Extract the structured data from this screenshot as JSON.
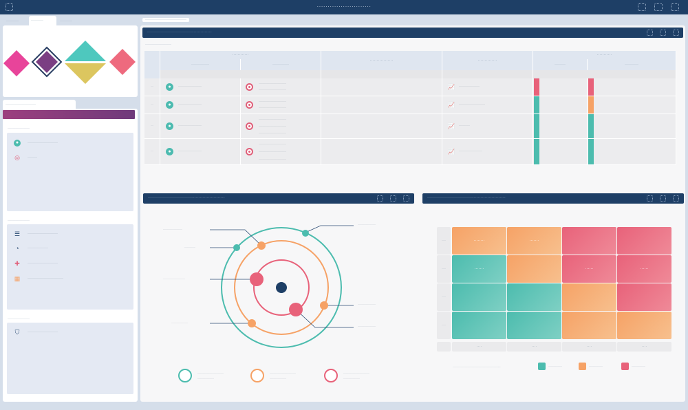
{
  "window": {
    "title": "·························",
    "app_icon": "app-grid-icon",
    "controls": [
      "minimize-icon",
      "maximize-icon",
      "close-icon"
    ]
  },
  "sidebar": {
    "tabs": [
      {
        "label": "·········"
      },
      {
        "label": "·········"
      },
      {
        "label": "·········"
      }
    ],
    "panel_tab": "······················",
    "logo_colors": [
      "#e8449a",
      "#7b3f83",
      "#4ec8be",
      "#dcc65f",
      "#ee6a7e"
    ],
    "sections": [
      {
        "heading": "················",
        "items": [
          {
            "icon": "user-icon",
            "label": "······················"
          },
          {
            "icon": "target-icon",
            "label": "·······"
          }
        ]
      },
      {
        "heading": "················",
        "items": [
          {
            "icon": "list-icon",
            "label": "······················"
          },
          {
            "icon": "pie-chart-icon",
            "label": "···············"
          },
          {
            "icon": "puzzle-icon",
            "label": "······················"
          },
          {
            "icon": "grid-icon",
            "label": "··························"
          }
        ]
      },
      {
        "heading": "················",
        "items": [
          {
            "icon": "shield-icon",
            "label": "······················"
          }
        ]
      }
    ]
  },
  "main": {
    "breadcrumb": "······························",
    "table_panel": {
      "title": "···············································",
      "subtitle": "···················",
      "group_headers": [
        "············",
        "·················",
        "··············",
        "···········"
      ],
      "sub_headers": [
        "·············",
        "············",
        "········",
        "··········"
      ],
      "rows": [
        {
          "num": "··",
          "a": "·················",
          "b1": "····················",
          "b2": "····················",
          "d": "···············",
          "bar1": "#e8627a",
          "bar2": "#e8627a"
        },
        {
          "num": "··",
          "a": "·················",
          "b1": "····················",
          "b2": "····················",
          "d": "···················",
          "bar1": "#4cbcae",
          "bar2": "#f6a266"
        },
        {
          "num": "··",
          "a": "·················",
          "b1": "····················",
          "b2": "····················",
          "b3": "····················",
          "d": "········",
          "bar1": "#4cbcae",
          "bar2": "#4cbcae"
        },
        {
          "num": "··",
          "a": "·················",
          "b1": "····················",
          "b2": "····················",
          "b3": "····················",
          "d": "·················",
          "bar1": "#4cbcae",
          "bar2": "#4cbcae"
        }
      ]
    },
    "radar_panel": {
      "title": "························································",
      "ring_colors": [
        "#4cbcae",
        "#f6a266",
        "#e8627a"
      ],
      "center_color": "#1e3f66",
      "callouts": [
        "··············",
        "········",
        "················",
        "············",
        "·············",
        "·············",
        "·············"
      ],
      "legend": [
        {
          "color": "#4cbcae",
          "line1": "···················",
          "line2": "············"
        },
        {
          "color": "#f6a266",
          "line1": "···················",
          "line2": "············"
        },
        {
          "color": "#e8627a",
          "line1": "···················",
          "line2": "············"
        }
      ]
    },
    "heatmap_panel": {
      "title": "·························································",
      "row_labels": [
        "···",
        "···",
        "···",
        "···"
      ],
      "col_labels": [
        "····",
        "····",
        "····",
        "····"
      ],
      "cells": [
        [
          {
            "level": "orange",
            "label": "········"
          },
          {
            "level": "orange",
            "label": "·······"
          },
          {
            "level": "red",
            "label": ""
          },
          {
            "level": "red",
            "label": ""
          }
        ],
        [
          {
            "level": "teal",
            "label": "·······"
          },
          {
            "level": "orange",
            "label": ""
          },
          {
            "level": "red",
            "label": "······"
          },
          {
            "level": "red",
            "label": "······"
          }
        ],
        [
          {
            "level": "teal",
            "label": ""
          },
          {
            "level": "teal",
            "label": ""
          },
          {
            "level": "orange",
            "label": ""
          },
          {
            "level": "red",
            "label": ""
          }
        ],
        [
          {
            "level": "teal",
            "label": ""
          },
          {
            "level": "teal",
            "label": ""
          },
          {
            "level": "orange",
            "label": ""
          },
          {
            "level": "orange",
            "label": ""
          }
        ]
      ],
      "colors": {
        "teal": "#4cbcae",
        "orange": "#f6a266",
        "red": "#e8627a"
      },
      "legend_caption": "···································",
      "legend": [
        {
          "color": "#4cbcae",
          "label": "··········"
        },
        {
          "color": "#f6a266",
          "label": "··········"
        },
        {
          "color": "#e8627a",
          "label": "··········"
        }
      ]
    }
  }
}
